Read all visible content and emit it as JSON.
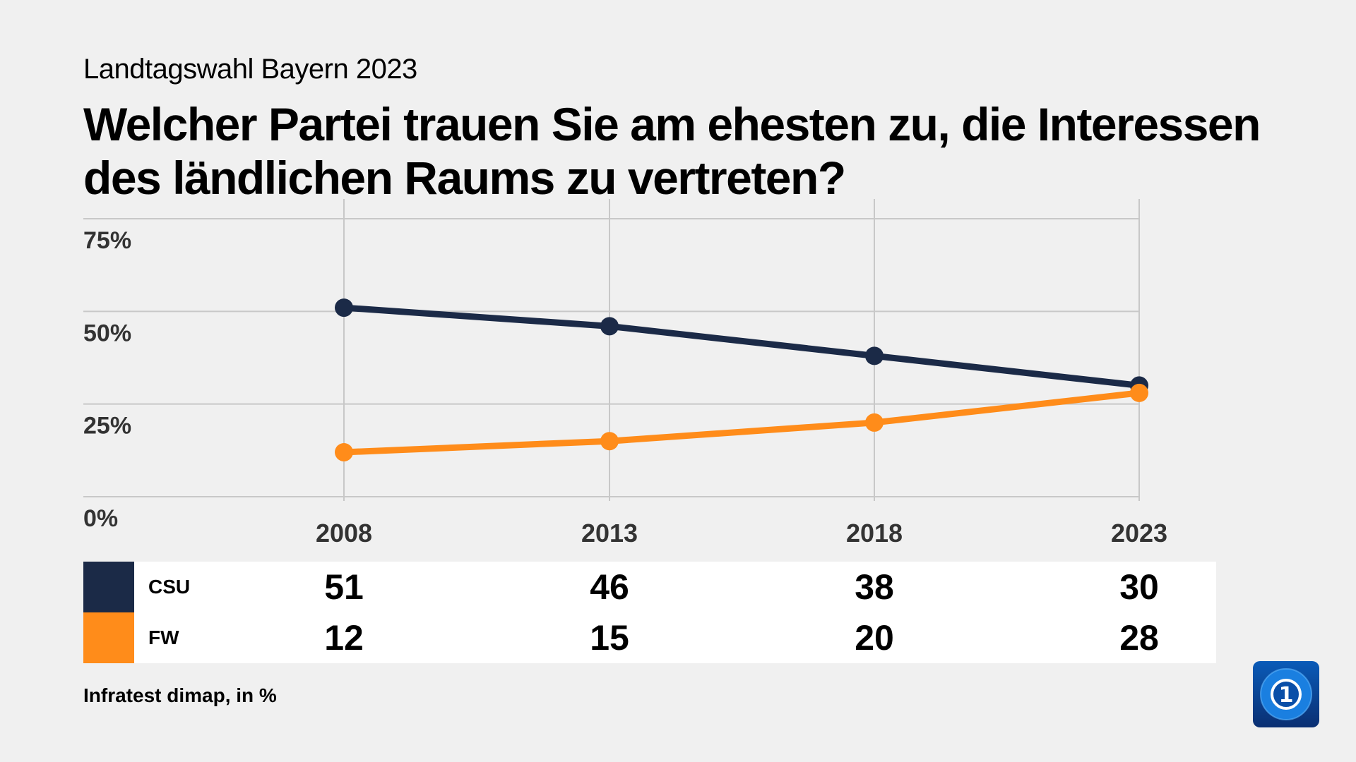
{
  "header": {
    "kicker": "Landtagswahl Bayern 2023",
    "title": "Welcher Partei trauen Sie am ehesten zu, die Interessen des ländlichen Raums zu vertreten?"
  },
  "chart_data": {
    "type": "line",
    "x": [
      "2008",
      "2013",
      "2018",
      "2023"
    ],
    "ylim": [
      0,
      75
    ],
    "yticks": [
      "0%",
      "25%",
      "50%",
      "75%"
    ],
    "grid": true,
    "series": [
      {
        "name": "CSU",
        "values": [
          51,
          46,
          38,
          30
        ],
        "color": "#1b2a47"
      },
      {
        "name": "FW",
        "values": [
          12,
          15,
          20,
          28
        ],
        "color": "#ff8c1a"
      }
    ]
  },
  "table": {
    "rows": [
      {
        "label": "CSU",
        "values": [
          "51",
          "46",
          "38",
          "30"
        ],
        "color": "#1b2a47"
      },
      {
        "label": "FW",
        "values": [
          "12",
          "15",
          "20",
          "28"
        ],
        "color": "#ff8c1a"
      }
    ]
  },
  "source": "Infratest dimap, in %",
  "logo": {
    "icon": "tagesschau-logo",
    "text": "1"
  }
}
